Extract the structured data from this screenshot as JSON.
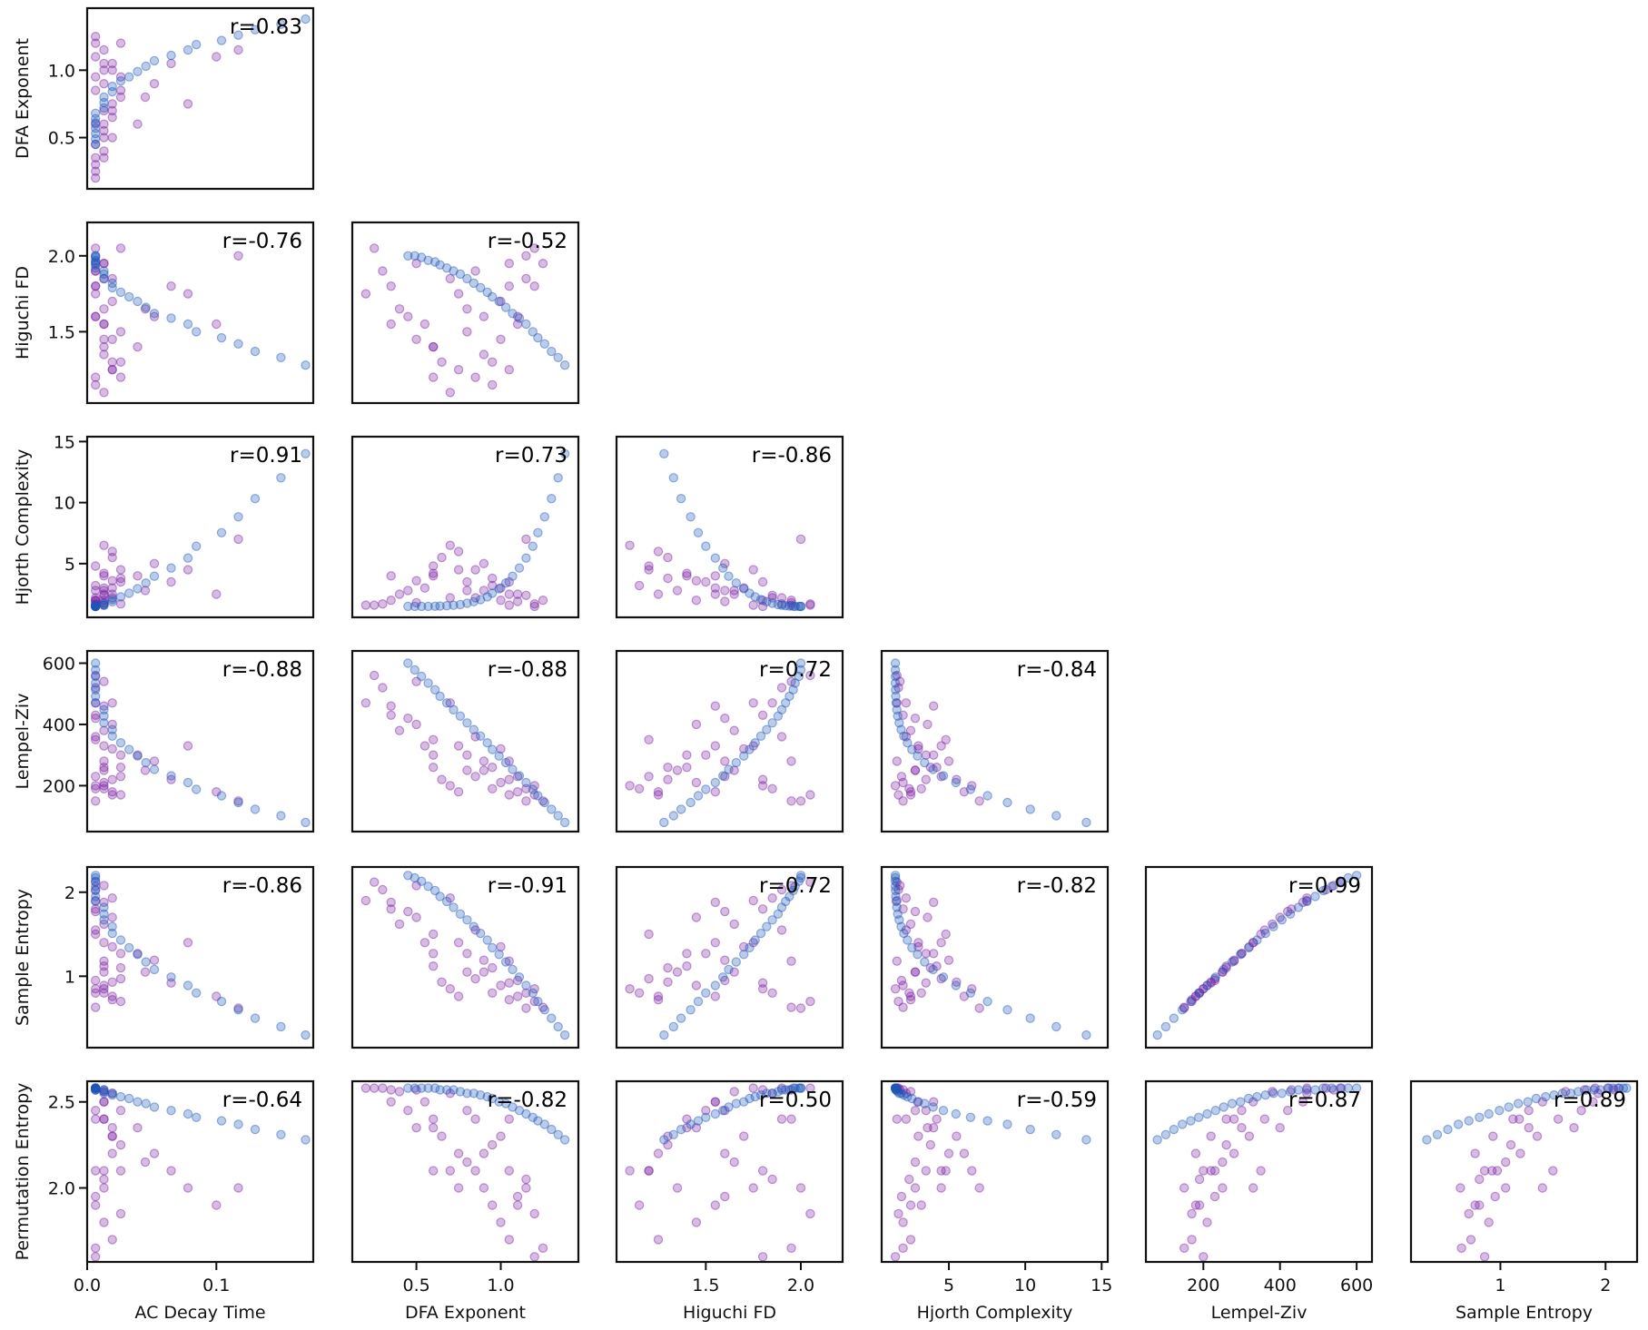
{
  "chart_data": {
    "type": "scatter",
    "layout": "pairplot-lower-triangle",
    "variables": [
      "AC Decay Time",
      "DFA Exponent",
      "Higuchi FD",
      "Hjorth Complexity",
      "Lempel-Ziv",
      "Sample Entropy",
      "Permutation Entropy"
    ],
    "x_variables": [
      "AC Decay Time",
      "DFA Exponent",
      "Higuchi FD",
      "Hjorth Complexity",
      "Lempel-Ziv",
      "Sample Entropy"
    ],
    "y_variables": [
      "DFA Exponent",
      "Higuchi FD",
      "Hjorth Complexity",
      "Lempel-Ziv",
      "Sample Entropy",
      "Permutation Entropy"
    ],
    "ranges": {
      "AC Decay Time": [
        0,
        0.175
      ],
      "DFA Exponent": [
        0.12,
        1.46
      ],
      "Higuchi FD": [
        1.03,
        2.22
      ],
      "Hjorth Complexity": [
        0.6,
        15.4
      ],
      "Lempel-Ziv": [
        50,
        640
      ],
      "Sample Entropy": [
        0.15,
        2.3
      ],
      "Permutation Entropy": [
        1.57,
        2.62
      ]
    },
    "ticks": {
      "AC Decay Time": [
        {
          "v": 0.0,
          "label": "0.0"
        },
        {
          "v": 0.1,
          "label": "0.1"
        }
      ],
      "DFA Exponent": [
        {
          "v": 0.5,
          "label": "0.5"
        },
        {
          "v": 1.0,
          "label": "1.0"
        }
      ],
      "Higuchi FD": [
        {
          "v": 1.5,
          "label": "1.5"
        },
        {
          "v": 2.0,
          "label": "2.0"
        }
      ],
      "Hjorth Complexity": [
        {
          "v": 5,
          "label": "5"
        },
        {
          "v": 10,
          "label": "10"
        },
        {
          "v": 15,
          "label": "15"
        }
      ],
      "Lempel-Ziv": [
        {
          "v": 200,
          "label": "200"
        },
        {
          "v": 400,
          "label": "400"
        },
        {
          "v": 600,
          "label": "600"
        }
      ],
      "Sample Entropy": [
        {
          "v": 1,
          "label": "1"
        },
        {
          "v": 2,
          "label": "2"
        }
      ],
      "Permutation Entropy": [
        {
          "v": 2.0,
          "label": "2.0"
        },
        {
          "v": 2.5,
          "label": "2.5"
        }
      ]
    },
    "correlations": [
      [
        "r=0.83"
      ],
      [
        "r=-0.76",
        "r=-0.52"
      ],
      [
        "r=0.91",
        "r=0.73",
        "r=-0.86"
      ],
      [
        "r=-0.88",
        "r=-0.88",
        "r=0.72",
        "r=-0.84"
      ],
      [
        "r=-0.86",
        "r=-0.91",
        "r=0.72",
        "r=-0.82",
        "r=0.99"
      ],
      [
        "r=-0.64",
        "r=-0.82",
        "r=0.50",
        "r=-0.59",
        "r=0.87",
        "r=0.89"
      ]
    ],
    "grid": false,
    "legend": "none",
    "groups": [
      {
        "color": "#1a56b8",
        "points": [
          [
            0.0065,
            0.45,
            2.0,
            1.5,
            600,
            2.2,
            2.58
          ],
          [
            0.0065,
            0.49,
            2.0,
            1.5,
            578,
            2.17,
            2.58
          ],
          [
            0.0065,
            0.53,
            1.99,
            1.5,
            557,
            2.13,
            2.58
          ],
          [
            0.0065,
            0.57,
            1.97,
            1.5,
            535,
            2.07,
            2.58
          ],
          [
            0.0065,
            0.61,
            1.96,
            1.51,
            513,
            2.02,
            2.58
          ],
          [
            0.0065,
            0.64,
            1.94,
            1.52,
            492,
            1.95,
            2.57
          ],
          [
            0.0065,
            0.68,
            1.92,
            1.55,
            470,
            1.89,
            2.57
          ],
          [
            0.013,
            0.72,
            1.9,
            1.59,
            448,
            1.82,
            2.57
          ],
          [
            0.013,
            0.76,
            1.88,
            1.65,
            427,
            1.74,
            2.56
          ],
          [
            0.013,
            0.8,
            1.85,
            1.75,
            405,
            1.67,
            2.55
          ],
          [
            0.0195,
            0.84,
            1.82,
            1.88,
            383,
            1.59,
            2.55
          ],
          [
            0.0195,
            0.88,
            1.79,
            2.05,
            362,
            1.51,
            2.54
          ],
          [
            0.026,
            0.92,
            1.76,
            2.28,
            340,
            1.43,
            2.53
          ],
          [
            0.0325,
            0.95,
            1.73,
            2.58,
            318,
            1.34,
            2.52
          ],
          [
            0.039,
            0.99,
            1.7,
            2.95,
            297,
            1.26,
            2.5
          ],
          [
            0.0455,
            1.03,
            1.66,
            3.41,
            275,
            1.17,
            2.49
          ],
          [
            0.052,
            1.07,
            1.62,
            3.97,
            253,
            1.08,
            2.47
          ],
          [
            0.065,
            1.11,
            1.59,
            4.64,
            232,
            0.99,
            2.45
          ],
          [
            0.078,
            1.15,
            1.55,
            5.46,
            210,
            0.89,
            2.43
          ],
          [
            0.0845,
            1.19,
            1.5,
            6.42,
            188,
            0.8,
            2.41
          ],
          [
            0.104,
            1.22,
            1.46,
            7.53,
            167,
            0.7,
            2.39
          ],
          [
            0.117,
            1.26,
            1.42,
            8.83,
            145,
            0.6,
            2.37
          ],
          [
            0.13,
            1.3,
            1.37,
            10.33,
            123,
            0.5,
            2.34
          ],
          [
            0.15,
            1.34,
            1.33,
            12.03,
            102,
            0.4,
            2.31
          ],
          [
            0.169,
            1.38,
            1.28,
            14.0,
            80,
            0.3,
            2.28
          ]
        ]
      },
      {
        "color": "#7b1fa2",
        "points": [
          [
            0.0065,
            0.2,
            1.75,
            1.6,
            470,
            1.9,
            2.58
          ],
          [
            0.0065,
            0.3,
            1.9,
            1.7,
            520,
            2.03,
            2.58
          ],
          [
            0.0065,
            0.35,
            1.8,
            2.0,
            430,
            1.8,
            2.57
          ],
          [
            0.0065,
            0.25,
            2.05,
            1.6,
            560,
            2.12,
            2.58
          ],
          [
            0.013,
            0.4,
            1.65,
            2.5,
            380,
            1.62,
            2.56
          ],
          [
            0.013,
            0.5,
            1.95,
            1.8,
            540,
            2.08,
            2.57
          ],
          [
            0.013,
            0.55,
            1.55,
            3.0,
            330,
            1.4,
            2.5
          ],
          [
            0.013,
            0.6,
            1.4,
            4.2,
            260,
            1.12,
            2.4
          ],
          [
            0.0195,
            0.65,
            1.3,
            5.5,
            220,
            0.93,
            2.3
          ],
          [
            0.0195,
            0.7,
            1.85,
            2.2,
            470,
            1.93,
            2.55
          ],
          [
            0.0195,
            0.75,
            1.25,
            6.0,
            180,
            0.76,
            2.2
          ],
          [
            0.026,
            0.8,
            1.5,
            3.5,
            300,
            1.27,
            2.45
          ],
          [
            0.026,
            0.85,
            1.2,
            4.5,
            230,
            0.97,
            2.1
          ],
          [
            0.013,
            0.9,
            1.35,
            2.8,
            250,
            1.05,
            2.0
          ],
          [
            0.0065,
            0.95,
            1.15,
            3.2,
            190,
            0.8,
            1.9
          ],
          [
            0.013,
            1.0,
            1.45,
            2.0,
            210,
            0.89,
            1.8
          ],
          [
            0.0195,
            1.05,
            1.25,
            2.5,
            170,
            0.72,
            1.7
          ],
          [
            0.0065,
            1.1,
            1.6,
            1.9,
            230,
            0.95,
            1.95
          ],
          [
            0.013,
            1.15,
            1.85,
            2.4,
            190,
            0.8,
            2.05
          ],
          [
            0.026,
            1.2,
            2.05,
            1.7,
            170,
            0.7,
            1.85
          ],
          [
            0.0065,
            1.25,
            1.95,
            2.0,
            150,
            0.63,
            1.65
          ],
          [
            0.0195,
            1.0,
            1.7,
            3.0,
            320,
            1.35,
            2.3
          ],
          [
            0.0065,
            0.85,
            1.9,
            2.2,
            360,
            1.55,
            2.4
          ],
          [
            0.013,
            0.7,
            1.1,
            6.5,
            200,
            0.85,
            2.1
          ],
          [
            0.039,
            0.6,
            1.4,
            4.0,
            300,
            1.27,
            2.35
          ],
          [
            0.052,
            0.9,
            1.6,
            5.0,
            280,
            1.19,
            2.2
          ],
          [
            0.065,
            1.05,
            1.8,
            3.5,
            220,
            0.92,
            2.1
          ],
          [
            0.078,
            0.75,
            1.75,
            4.5,
            330,
            1.4,
            2.0
          ],
          [
            0.1,
            1.1,
            1.55,
            2.5,
            180,
            0.76,
            1.9
          ],
          [
            0.117,
            1.15,
            2.0,
            7.0,
            150,
            0.62,
            2.0
          ],
          [
            0.0065,
            0.45,
            1.6,
            2.8,
            420,
            1.77,
            2.45
          ],
          [
            0.0065,
            0.6,
            1.2,
            4.8,
            350,
            1.5,
            2.1
          ],
          [
            0.026,
            0.95,
            1.3,
            3.8,
            260,
            1.1,
            2.25
          ],
          [
            0.013,
            1.05,
            1.95,
            1.6,
            280,
            1.18,
            2.4
          ],
          [
            0.0195,
            0.5,
            1.45,
            3.6,
            400,
            1.7,
            2.35
          ],
          [
            0.0065,
            1.2,
            1.8,
            1.5,
            200,
            0.85,
            1.6
          ],
          [
            0.045,
            0.8,
            1.65,
            2.8,
            250,
            1.05,
            2.15
          ],
          [
            0.013,
            0.35,
            1.55,
            4.0,
            460,
            1.88,
            2.5
          ]
        ]
      }
    ]
  }
}
